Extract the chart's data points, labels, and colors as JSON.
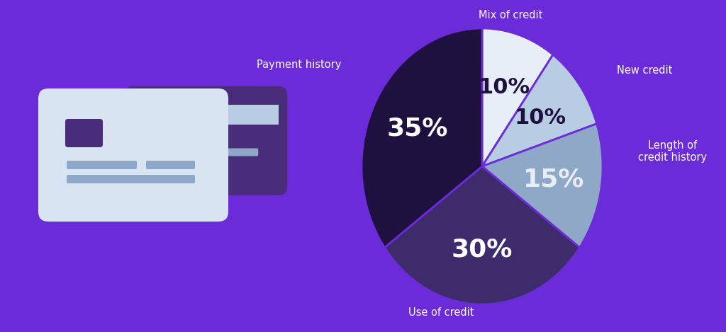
{
  "background_color": "#6c2bd9",
  "pie_slices": [
    {
      "label": "Mix of credit",
      "value": 10,
      "color": "#e8eef8",
      "text_color": "#1e1140"
    },
    {
      "label": "New credit",
      "value": 10,
      "color": "#b8cce4",
      "text_color": "#1e1140"
    },
    {
      "label": "Length of\ncredit history",
      "value": 15,
      "color": "#8fa8c8",
      "text_color": "#e8eef8"
    },
    {
      "label": "Use of credit",
      "value": 30,
      "color": "#3d2b6b",
      "text_color": "#ffffff"
    },
    {
      "label": "Payment history",
      "value": 35,
      "color": "#1e1140",
      "text_color": "#ffffff"
    }
  ],
  "label_color": "#ffffff",
  "label_fontsize": 10.5,
  "pct_fontsize_large": 26,
  "pct_fontsize_small": 22,
  "card_color_back": "#4a2d7a",
  "card_color_front": "#d8e4f2",
  "card_stripe_color": "#b8cce4",
  "card_chip_color": "#4a2d7a",
  "card_line_color": "#8fa8c8",
  "edge_color": "#b0b8d0"
}
